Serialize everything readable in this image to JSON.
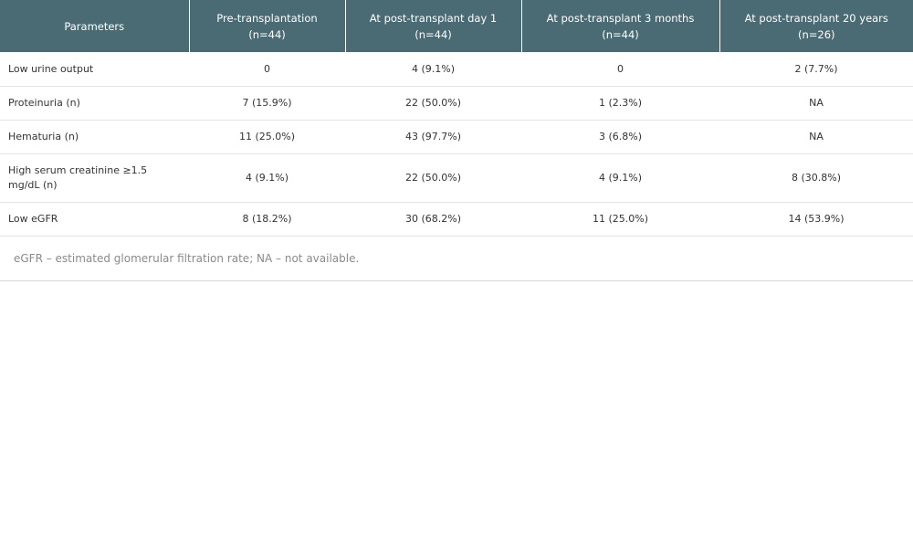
{
  "table": {
    "headers": [
      {
        "title": "Parameters",
        "sub": ""
      },
      {
        "title": "Pre-transplantation",
        "sub": "(n=44)"
      },
      {
        "title": "At post-transplant day 1",
        "sub": "(n=44)"
      },
      {
        "title": "At post-transplant 3 months",
        "sub": "(n=44)"
      },
      {
        "title": "At post-transplant 20 years",
        "sub": "(n=26)"
      }
    ],
    "rows": [
      {
        "cells": [
          "Low urine output",
          "0",
          "4 (9.1%)",
          "0",
          "2 (7.7%)"
        ]
      },
      {
        "cells": [
          "Proteinuria (n)",
          "7 (15.9%)",
          "22 (50.0%)",
          "1 (2.3%)",
          "NA"
        ]
      },
      {
        "cells": [
          "Hematuria (n)",
          "11 (25.0%)",
          "43 (97.7%)",
          "3 (6.8%)",
          "NA"
        ]
      },
      {
        "cells": [
          "High serum creatinine ≥1.5 mg/dL (n)",
          "4 (9.1%)",
          "22 (50.0%)",
          "4 (9.1%)",
          "8 (30.8%)"
        ]
      },
      {
        "cells": [
          "Low eGFR",
          "8 (18.2%)",
          "30 (68.2%)",
          "11 (25.0%)",
          "14 (53.9%)"
        ]
      }
    ]
  },
  "footnote": "eGFR – estimated glomerular filtration rate; NA – not available.",
  "colors": {
    "header_bg": "#4a6b73",
    "header_text": "#ffffff",
    "row_border": "#e3e3e3",
    "footnote_text": "#8a8a8a"
  }
}
